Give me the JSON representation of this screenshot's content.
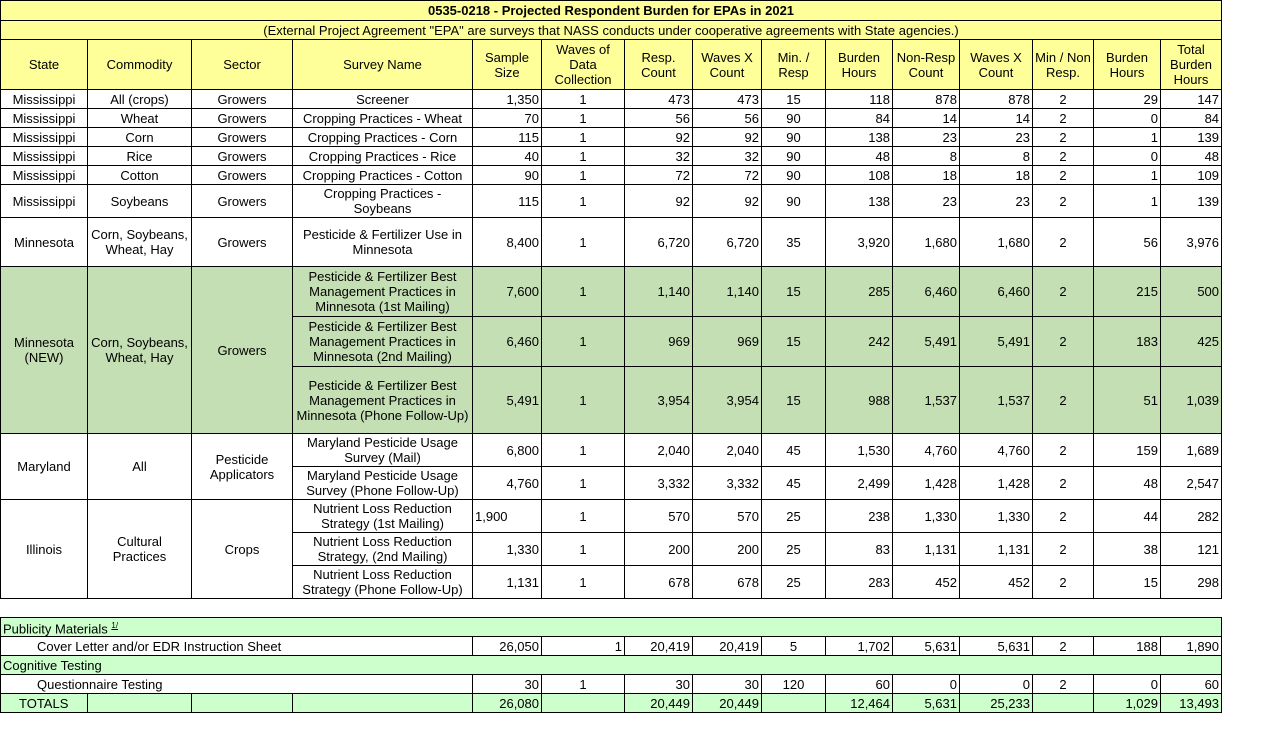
{
  "title": "0535-0218 - Projected Respondent Burden for EPAs in 2021",
  "subtitle": "(External Project Agreement \"EPA\" are surveys that NASS conducts under cooperative agreements with State agencies.)",
  "colors": {
    "header": "#ffff99",
    "highlight": "#c4dfb3",
    "section": "#ccffcc"
  },
  "headers": [
    "State",
    "Commodity",
    "Sector",
    "Survey Name",
    "Sample Size",
    "Waves of Data Collection",
    "Resp. Count",
    "Waves X Count",
    "Min. / Resp",
    "Burden Hours",
    "Non-Resp Count",
    "Waves X Count",
    "Min / Non Resp.",
    "Burden Hours",
    "Total Burden Hours"
  ],
  "groups": [
    {
      "state": "Mississippi",
      "commodity": "All (crops)",
      "sector": "Growers",
      "rows": [
        {
          "survey": "Screener",
          "values": [
            "1,350",
            "1",
            "473",
            "473",
            "15",
            "118",
            "878",
            "878",
            "2",
            "29",
            "147"
          ]
        }
      ]
    },
    {
      "state": "Mississippi",
      "commodity": "Wheat",
      "sector": "Growers",
      "rows": [
        {
          "survey": "Cropping Practices - Wheat",
          "values": [
            "70",
            "1",
            "56",
            "56",
            "90",
            "84",
            "14",
            "14",
            "2",
            "0",
            "84"
          ]
        }
      ]
    },
    {
      "state": "Mississippi",
      "commodity": "Corn",
      "sector": "Growers",
      "rows": [
        {
          "survey": "Cropping Practices - Corn",
          "values": [
            "115",
            "1",
            "92",
            "92",
            "90",
            "138",
            "23",
            "23",
            "2",
            "1",
            "139"
          ]
        }
      ]
    },
    {
      "state": "Mississippi",
      "commodity": "Rice",
      "sector": "Growers",
      "rows": [
        {
          "survey": "Cropping Practices - Rice",
          "values": [
            "40",
            "1",
            "32",
            "32",
            "90",
            "48",
            "8",
            "8",
            "2",
            "0",
            "48"
          ]
        }
      ]
    },
    {
      "state": "Mississippi",
      "commodity": "Cotton",
      "sector": "Growers",
      "rows": [
        {
          "survey": "Cropping Practices - Cotton",
          "values": [
            "90",
            "1",
            "72",
            "72",
            "90",
            "108",
            "18",
            "18",
            "2",
            "1",
            "109"
          ]
        }
      ]
    },
    {
      "state": "Mississippi",
      "commodity": "Soybeans",
      "sector": "Growers",
      "rows": [
        {
          "survey": "Cropping Practices - Soybeans",
          "values": [
            "115",
            "1",
            "92",
            "92",
            "90",
            "138",
            "23",
            "23",
            "2",
            "1",
            "139"
          ]
        }
      ]
    },
    {
      "state": "Minnesota",
      "commodity": "Corn, Soybeans, Wheat, Hay",
      "sector": "Growers",
      "rows": [
        {
          "survey": "Pesticide & Fertilizer Use in Minnesota",
          "values": [
            "8,400",
            "1",
            "6,720",
            "6,720",
            "35",
            "3,920",
            "1,680",
            "1,680",
            "2",
            "56",
            "3,976"
          ]
        }
      ]
    },
    {
      "state": "Minnesota (NEW)",
      "commodity": "Corn, Soybeans, Wheat, Hay",
      "sector": "Growers",
      "highlight": true,
      "rows": [
        {
          "survey": "Pesticide & Fertilizer Best Management Practices in Minnesota (1st Mailing)",
          "values": [
            "7,600",
            "1",
            "1,140",
            "1,140",
            "15",
            "285",
            "6,460",
            "6,460",
            "2",
            "215",
            "500"
          ]
        },
        {
          "survey": "Pesticide & Fertilizer Best Management Practices in Minnesota (2nd Mailing)",
          "values": [
            "6,460",
            "1",
            "969",
            "969",
            "15",
            "242",
            "5,491",
            "5,491",
            "2",
            "183",
            "425"
          ]
        },
        {
          "survey": "Pesticide & Fertilizer Best Management Practices in Minnesota (Phone Follow-Up)",
          "values": [
            "5,491",
            "1",
            "3,954",
            "3,954",
            "15",
            "988",
            "1,537",
            "1,537",
            "2",
            "51",
            "1,039"
          ]
        }
      ]
    },
    {
      "state": "Maryland",
      "commodity": "All",
      "sector": "Pesticide Applicators",
      "rows": [
        {
          "survey": "Maryland Pesticide Usage Survey (Mail)",
          "values": [
            "6,800",
            "1",
            "2,040",
            "2,040",
            "45",
            "1,530",
            "4,760",
            "4,760",
            "2",
            "159",
            "1,689"
          ]
        },
        {
          "survey": "Maryland Pesticide Usage Survey (Phone Follow-Up)",
          "values": [
            "4,760",
            "1",
            "3,332",
            "3,332",
            "45",
            "2,499",
            "1,428",
            "1,428",
            "2",
            "48",
            "2,547"
          ]
        }
      ]
    },
    {
      "state": "Illinois",
      "commodity": "Cultural Practices",
      "sector": "Crops",
      "rows": [
        {
          "survey": "Nutrient Loss Reduction Strategy (1st Mailing)",
          "values": [
            "1,900",
            "1",
            "570",
            "570",
            "25",
            "238",
            "1,330",
            "1,330",
            "2",
            "44",
            "282"
          ]
        },
        {
          "survey": "Nutrient Loss Reduction Strategy, (2nd Mailing)",
          "values": [
            "1,330",
            "1",
            "200",
            "200",
            "25",
            "83",
            "1,131",
            "1,131",
            "2",
            "38",
            "121"
          ]
        },
        {
          "survey": "Nutrient Loss Reduction Strategy (Phone Follow-Up)",
          "values": [
            "1,131",
            "1",
            "678",
            "678",
            "25",
            "283",
            "452",
            "452",
            "2",
            "15",
            "298"
          ]
        }
      ]
    }
  ],
  "sections": [
    {
      "label": "Publicity Materials",
      "footnote": "1/",
      "item": "Cover Letter and/or EDR Instruction Sheet",
      "values": [
        "26,050",
        "1",
        "20,419",
        "20,419",
        "5",
        "1,702",
        "5,631",
        "5,631",
        "2",
        "188",
        "1,890"
      ]
    },
    {
      "label": "Cognitive Testing",
      "item": "Questionnaire Testing",
      "values": [
        "30",
        "1",
        "30",
        "30",
        "120",
        "60",
        "0",
        "0",
        "2",
        "0",
        "60"
      ]
    }
  ],
  "totals": {
    "label": "TOTALS",
    "values": [
      "26,080",
      "",
      "20,449",
      "20,449",
      "",
      "12,464",
      "5,631",
      "25,233",
      "",
      "1,029",
      "13,493"
    ]
  }
}
